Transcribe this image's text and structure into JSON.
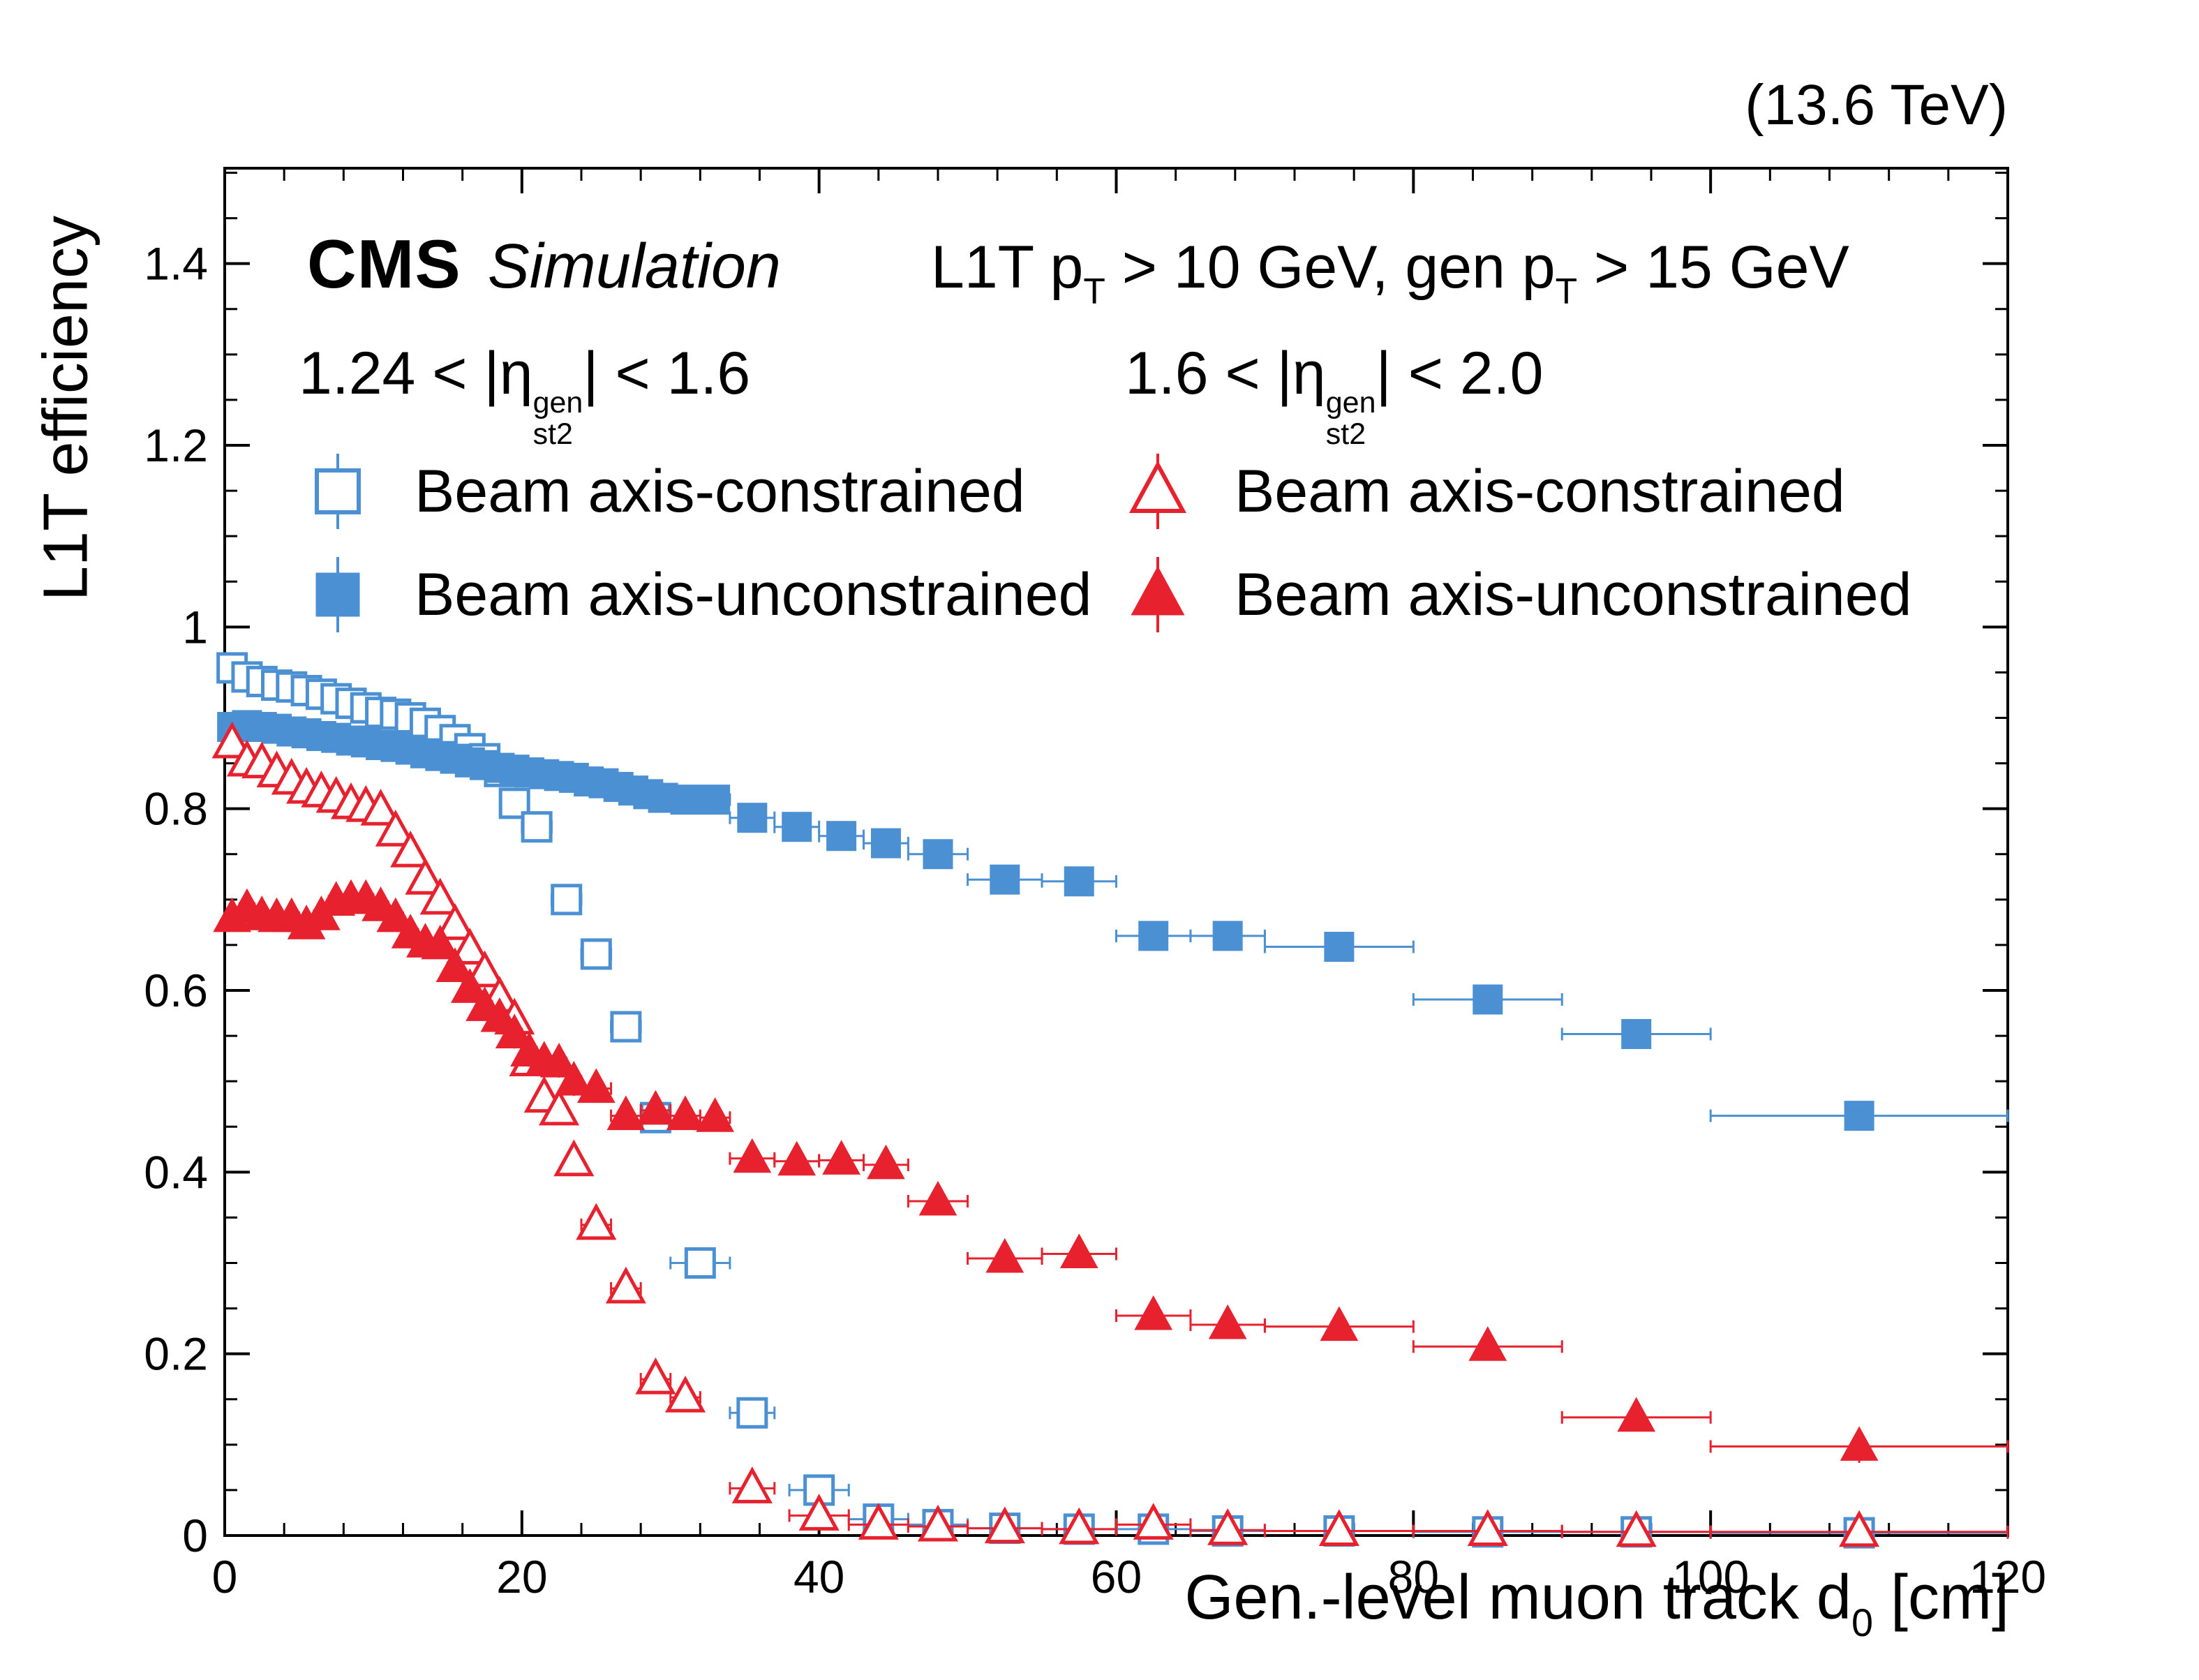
{
  "header": {
    "energy": "(13.6 TeV)"
  },
  "annotations": {
    "cms": "CMS",
    "simulation": "Simulation",
    "selection": {
      "p1": "L1T p",
      "s1": "T",
      "p2": " > 10 GeV, gen p",
      "s2": "T",
      "p3": " > 15 GeV"
    }
  },
  "legend": {
    "columns": [
      {
        "header": {
          "pre": "1.24 < |",
          "eta": "η",
          "sup": "gen",
          "sub": "st2",
          "post": "| < 1.6"
        },
        "entries": [
          {
            "label": "Beam axis-constrained"
          },
          {
            "label": "Beam axis-unconstrained"
          }
        ]
      },
      {
        "header": {
          "pre": "1.6 < |",
          "eta": "η",
          "sup": "gen",
          "sub": "st2",
          "post": "| < 2.0"
        },
        "entries": [
          {
            "label": "Beam axis-constrained"
          },
          {
            "label": "Beam axis-unconstrained"
          }
        ]
      }
    ]
  },
  "axes": {
    "x_title": {
      "pre": "Gen.-level muon track d",
      "sub": "0",
      "post": " [cm]"
    },
    "y_title": "L1T efficiency"
  },
  "chart_data": {
    "type": "scatter",
    "title": "",
    "xlabel": "Gen.-level muon track d0 [cm]",
    "ylabel": "L1T efficiency",
    "xlim": [
      0,
      120
    ],
    "ylim": [
      0,
      1.505
    ],
    "x_ticks": [
      0,
      20,
      40,
      60,
      80,
      100,
      120
    ],
    "x_tick_labels": [
      "0",
      "20",
      "40",
      "60",
      "80",
      "100",
      "120"
    ],
    "x_minor_step": 4,
    "y_ticks": [
      0,
      0.2,
      0.4,
      0.6,
      0.8,
      1.0,
      1.2,
      1.4
    ],
    "y_tick_labels": [
      "0",
      "0.2",
      "0.4",
      "0.6",
      "0.8",
      "1",
      "1.2",
      "1.4"
    ],
    "y_minor_step": 0.05,
    "grid": false,
    "legend_position": "top-inside",
    "series": [
      {
        "name": "Beam axis-constrained",
        "eta_range": "1.24 < |eta_st2_gen| < 1.6",
        "marker": "square",
        "filled": false,
        "color": "#4a90d2",
        "points": [
          [
            0.5,
            0.955,
            0.5,
            0.012
          ],
          [
            1.5,
            0.945,
            0.5,
            0.01
          ],
          [
            2.5,
            0.94,
            0.5,
            0.01
          ],
          [
            3.5,
            0.936,
            0.5,
            0.01
          ],
          [
            4.5,
            0.934,
            0.5,
            0.01
          ],
          [
            5.5,
            0.93,
            0.5,
            0.01
          ],
          [
            6.5,
            0.926,
            0.5,
            0.01
          ],
          [
            7.5,
            0.921,
            0.5,
            0.01
          ],
          [
            8.5,
            0.916,
            0.5,
            0.01
          ],
          [
            9.5,
            0.911,
            0.5,
            0.01
          ],
          [
            10.5,
            0.906,
            0.5,
            0.01
          ],
          [
            11.5,
            0.904,
            0.5,
            0.01
          ],
          [
            12.5,
            0.9,
            0.5,
            0.01
          ],
          [
            13.5,
            0.894,
            0.5,
            0.01
          ],
          [
            14.5,
            0.886,
            0.5,
            0.011
          ],
          [
            15.5,
            0.876,
            0.5,
            0.011
          ],
          [
            16.5,
            0.866,
            0.5,
            0.011
          ],
          [
            17.5,
            0.855,
            0.5,
            0.012
          ],
          [
            18.5,
            0.841,
            0.5,
            0.012
          ],
          [
            19.5,
            0.806,
            0.5,
            0.013
          ],
          [
            21,
            0.78,
            1,
            0.013
          ],
          [
            23,
            0.7,
            1,
            0.015
          ],
          [
            25,
            0.64,
            1,
            0.016
          ],
          [
            27,
            0.56,
            1,
            0.017
          ],
          [
            29,
            0.46,
            1,
            0.017
          ],
          [
            32,
            0.3,
            2,
            0.015
          ],
          [
            35.5,
            0.135,
            1.5,
            0.012
          ],
          [
            40,
            0.05,
            2,
            0.008
          ],
          [
            44,
            0.018,
            2,
            0.005
          ],
          [
            48,
            0.012,
            2,
            0.004
          ],
          [
            52.5,
            0.008,
            2.5,
            0.003
          ],
          [
            57.5,
            0.007,
            2.5,
            0.003
          ],
          [
            62.5,
            0.007,
            2.5,
            0.003
          ],
          [
            67.5,
            0.005,
            2.5,
            0.003
          ],
          [
            75,
            0.005,
            5,
            0.002
          ],
          [
            85,
            0.004,
            5,
            0.002
          ],
          [
            95,
            0.004,
            5,
            0.002
          ],
          [
            110,
            0.003,
            10,
            0.002
          ]
        ]
      },
      {
        "name": "Beam axis-unconstrained",
        "eta_range": "1.24 < |eta_st2_gen| < 1.6",
        "marker": "square",
        "filled": true,
        "color": "#4a90d2",
        "points": [
          [
            0.5,
            0.89,
            0.5,
            0.008
          ],
          [
            1.5,
            0.892,
            0.5,
            0.008
          ],
          [
            2.5,
            0.89,
            0.5,
            0.008
          ],
          [
            3.5,
            0.888,
            0.5,
            0.008
          ],
          [
            4.5,
            0.885,
            0.5,
            0.008
          ],
          [
            5.5,
            0.883,
            0.5,
            0.008
          ],
          [
            6.5,
            0.88,
            0.5,
            0.008
          ],
          [
            7.5,
            0.878,
            0.5,
            0.008
          ],
          [
            8.5,
            0.875,
            0.5,
            0.008
          ],
          [
            9.5,
            0.873,
            0.5,
            0.008
          ],
          [
            10.5,
            0.87,
            0.5,
            0.008
          ],
          [
            11.5,
            0.868,
            0.5,
            0.008
          ],
          [
            12.5,
            0.865,
            0.5,
            0.008
          ],
          [
            13.5,
            0.861,
            0.5,
            0.008
          ],
          [
            14.5,
            0.858,
            0.5,
            0.008
          ],
          [
            15.5,
            0.855,
            0.5,
            0.008
          ],
          [
            16.5,
            0.851,
            0.5,
            0.009
          ],
          [
            17.5,
            0.848,
            0.5,
            0.009
          ],
          [
            18.5,
            0.845,
            0.5,
            0.009
          ],
          [
            19.5,
            0.843,
            0.5,
            0.009
          ],
          [
            20.5,
            0.84,
            0.5,
            0.009
          ],
          [
            21.5,
            0.838,
            0.5,
            0.009
          ],
          [
            22.5,
            0.836,
            0.5,
            0.009
          ],
          [
            23.5,
            0.834,
            0.5,
            0.009
          ],
          [
            24.5,
            0.83,
            0.5,
            0.009
          ],
          [
            25.5,
            0.828,
            0.5,
            0.01
          ],
          [
            26.5,
            0.824,
            0.5,
            0.01
          ],
          [
            27.5,
            0.82,
            0.5,
            0.01
          ],
          [
            28.5,
            0.816,
            0.5,
            0.01
          ],
          [
            29.5,
            0.812,
            0.5,
            0.01
          ],
          [
            31,
            0.81,
            1,
            0.008
          ],
          [
            33,
            0.81,
            1,
            0.008
          ],
          [
            35.5,
            0.79,
            1.5,
            0.008
          ],
          [
            38.5,
            0.78,
            1.5,
            0.008
          ],
          [
            41.5,
            0.77,
            1.5,
            0.009
          ],
          [
            44.5,
            0.762,
            1.5,
            0.009
          ],
          [
            48,
            0.75,
            2,
            0.009
          ],
          [
            52.5,
            0.722,
            2.5,
            0.01
          ],
          [
            57.5,
            0.72,
            2.5,
            0.01
          ],
          [
            62.5,
            0.66,
            2.5,
            0.012
          ],
          [
            67.5,
            0.66,
            2.5,
            0.012
          ],
          [
            75,
            0.648,
            5,
            0.01
          ],
          [
            85,
            0.59,
            5,
            0.012
          ],
          [
            95,
            0.552,
            5,
            0.015
          ],
          [
            110,
            0.462,
            10,
            0.015
          ]
        ]
      },
      {
        "name": "Beam axis-constrained",
        "eta_range": "1.6 < |eta_st2_gen| < 2.0",
        "marker": "triangle",
        "filled": false,
        "color": "#e8212e",
        "points": [
          [
            0.5,
            0.872,
            0.5,
            0.012
          ],
          [
            1.5,
            0.852,
            0.5,
            0.011
          ],
          [
            2.5,
            0.85,
            0.5,
            0.011
          ],
          [
            3.5,
            0.84,
            0.5,
            0.011
          ],
          [
            4.5,
            0.832,
            0.5,
            0.011
          ],
          [
            5.5,
            0.822,
            0.5,
            0.011
          ],
          [
            6.5,
            0.818,
            0.5,
            0.011
          ],
          [
            7.5,
            0.812,
            0.5,
            0.011
          ],
          [
            8.5,
            0.805,
            0.5,
            0.011
          ],
          [
            9.5,
            0.802,
            0.5,
            0.012
          ],
          [
            10.5,
            0.798,
            0.5,
            0.012
          ],
          [
            11.5,
            0.775,
            0.5,
            0.012
          ],
          [
            12.5,
            0.752,
            0.5,
            0.013
          ],
          [
            13.5,
            0.722,
            0.5,
            0.013
          ],
          [
            14.5,
            0.7,
            0.5,
            0.014
          ],
          [
            15.5,
            0.672,
            0.5,
            0.014
          ],
          [
            16.5,
            0.645,
            0.5,
            0.015
          ],
          [
            17.5,
            0.62,
            0.5,
            0.015
          ],
          [
            18.5,
            0.592,
            0.5,
            0.015
          ],
          [
            19.5,
            0.568,
            0.5,
            0.016
          ],
          [
            20.5,
            0.522,
            0.5,
            0.016
          ],
          [
            21.5,
            0.482,
            0.5,
            0.016
          ],
          [
            22.5,
            0.468,
            0.5,
            0.016
          ],
          [
            23.5,
            0.412,
            0.5,
            0.016
          ],
          [
            25,
            0.342,
            1,
            0.012
          ],
          [
            27,
            0.272,
            1,
            0.012
          ],
          [
            29,
            0.172,
            1,
            0.01
          ],
          [
            31,
            0.152,
            1,
            0.01
          ],
          [
            35.5,
            0.052,
            1.5,
            0.007
          ],
          [
            40,
            0.022,
            2,
            0.005
          ],
          [
            44,
            0.012,
            2,
            0.004
          ],
          [
            48,
            0.01,
            2,
            0.004
          ],
          [
            52.5,
            0.008,
            2.5,
            0.003
          ],
          [
            57.5,
            0.007,
            2.5,
            0.003
          ],
          [
            62.5,
            0.012,
            2.5,
            0.004
          ],
          [
            67.5,
            0.006,
            2.5,
            0.003
          ],
          [
            75,
            0.005,
            5,
            0.002
          ],
          [
            85,
            0.005,
            5,
            0.002
          ],
          [
            95,
            0.004,
            5,
            0.002
          ],
          [
            110,
            0.004,
            10,
            0.002
          ]
        ]
      },
      {
        "name": "Beam axis-unconstrained",
        "eta_range": "1.6 < |eta_st2_gen| < 2.0",
        "marker": "triangle",
        "filled": true,
        "color": "#e8212e",
        "points": [
          [
            0.5,
            0.68,
            0.5,
            0.013
          ],
          [
            1.5,
            0.69,
            0.5,
            0.013
          ],
          [
            2.5,
            0.682,
            0.5,
            0.013
          ],
          [
            3.5,
            0.68,
            0.5,
            0.013
          ],
          [
            4.5,
            0.68,
            0.5,
            0.013
          ],
          [
            5.5,
            0.672,
            0.5,
            0.013
          ],
          [
            6.5,
            0.682,
            0.5,
            0.013
          ],
          [
            7.5,
            0.698,
            0.5,
            0.013
          ],
          [
            8.5,
            0.7,
            0.5,
            0.013
          ],
          [
            9.5,
            0.7,
            0.5,
            0.013
          ],
          [
            10.5,
            0.692,
            0.5,
            0.014
          ],
          [
            11.5,
            0.68,
            0.5,
            0.014
          ],
          [
            12.5,
            0.662,
            0.5,
            0.014
          ],
          [
            13.5,
            0.652,
            0.5,
            0.014
          ],
          [
            14.5,
            0.65,
            0.5,
            0.015
          ],
          [
            15.5,
            0.625,
            0.5,
            0.015
          ],
          [
            16.5,
            0.602,
            0.5,
            0.015
          ],
          [
            17.5,
            0.582,
            0.5,
            0.015
          ],
          [
            18.5,
            0.57,
            0.5,
            0.016
          ],
          [
            19.5,
            0.552,
            0.5,
            0.016
          ],
          [
            20.5,
            0.532,
            0.5,
            0.016
          ],
          [
            21.5,
            0.522,
            0.5,
            0.016
          ],
          [
            22.5,
            0.52,
            0.5,
            0.016
          ],
          [
            23.5,
            0.5,
            0.5,
            0.016
          ],
          [
            25,
            0.492,
            1,
            0.012
          ],
          [
            27,
            0.462,
            1,
            0.012
          ],
          [
            29,
            0.468,
            1,
            0.012
          ],
          [
            31,
            0.462,
            1,
            0.012
          ],
          [
            33,
            0.46,
            1,
            0.012
          ],
          [
            35.5,
            0.415,
            1.5,
            0.01
          ],
          [
            38.5,
            0.412,
            1.5,
            0.01
          ],
          [
            41.5,
            0.413,
            1.5,
            0.011
          ],
          [
            44.5,
            0.408,
            1.5,
            0.011
          ],
          [
            48,
            0.368,
            2,
            0.011
          ],
          [
            52.5,
            0.305,
            2.5,
            0.011
          ],
          [
            57.5,
            0.31,
            2.5,
            0.011
          ],
          [
            62.5,
            0.242,
            2.5,
            0.012
          ],
          [
            67.5,
            0.232,
            2.5,
            0.012
          ],
          [
            75,
            0.23,
            5,
            0.01
          ],
          [
            85,
            0.208,
            5,
            0.012
          ],
          [
            95,
            0.13,
            5,
            0.015
          ],
          [
            110,
            0.098,
            10,
            0.018
          ]
        ]
      }
    ]
  }
}
